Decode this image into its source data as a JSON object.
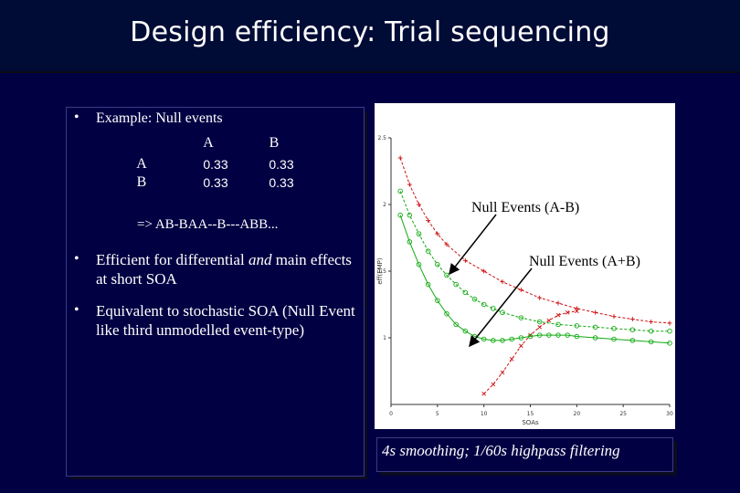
{
  "slide": {
    "title": "Design efficiency: Trial sequencing"
  },
  "left_panel": {
    "bullet_1": "Example: Null events",
    "matrix": {
      "col_headers": [
        "A",
        "B"
      ],
      "rows": [
        {
          "label": "A",
          "values": [
            "0.33",
            "0.33"
          ]
        },
        {
          "label": "B",
          "values": [
            "0.33",
            "0.33"
          ]
        }
      ]
    },
    "sequence": "=> AB-BAA--B---ABB...",
    "bullet_2_pre": "Efficient for differential ",
    "bullet_2_em": "and",
    "bullet_2_post": " main effects at short SOA",
    "bullet_3": "Equivalent to stochastic SOA (Null Event like third unmodelled event-type)",
    "bullet_glyph": "•"
  },
  "figure": {
    "annotations": {
      "null_diff": "Null Events (A-B)",
      "null_main": "Null Events (A+B)"
    },
    "caption": "4s smoothing; 1/60s highpass filtering",
    "colors": {
      "red": "#cc1111",
      "green": "#11aa11",
      "axis": "#333333"
    }
  },
  "chart_data": {
    "type": "line",
    "xlabel": "SOAs",
    "ylabel": "eff(EMP)",
    "xlim": [
      0,
      30
    ],
    "ylim": [
      0.5,
      2.5
    ],
    "x_ticks": [
      "0",
      "5",
      "10",
      "15",
      "20",
      "25",
      "30"
    ],
    "y_ticks": [
      "1",
      "1.5",
      "2",
      "2.5"
    ],
    "series": [
      {
        "color": "red",
        "style": "dashed",
        "marker": "+",
        "x": [
          1,
          2,
          3,
          4,
          5,
          6,
          8,
          10,
          12,
          14,
          16,
          18,
          20,
          22,
          24,
          26,
          28,
          30
        ],
        "y": [
          2.35,
          2.15,
          2.0,
          1.88,
          1.78,
          1.7,
          1.58,
          1.5,
          1.42,
          1.36,
          1.3,
          1.26,
          1.22,
          1.19,
          1.16,
          1.14,
          1.12,
          1.11
        ]
      },
      {
        "color": "red",
        "style": "dashed",
        "marker": "x",
        "x": [
          10,
          11,
          12,
          13,
          14,
          15,
          16,
          17,
          18,
          19,
          20
        ],
        "y": [
          0.58,
          0.65,
          0.74,
          0.84,
          0.94,
          1.02,
          1.08,
          1.13,
          1.17,
          1.19,
          1.2
        ]
      },
      {
        "color": "green",
        "style": "dashed",
        "marker": "o",
        "x": [
          1,
          2,
          3,
          4,
          5,
          6,
          7,
          8,
          9,
          10,
          11,
          12,
          14,
          16,
          18,
          20,
          22,
          24,
          26,
          28,
          30
        ],
        "y": [
          2.1,
          1.92,
          1.78,
          1.65,
          1.55,
          1.47,
          1.4,
          1.34,
          1.29,
          1.25,
          1.22,
          1.19,
          1.15,
          1.12,
          1.1,
          1.09,
          1.08,
          1.07,
          1.06,
          1.05,
          1.05
        ]
      },
      {
        "color": "green",
        "style": "solid",
        "marker": "o",
        "x": [
          1,
          2,
          3,
          4,
          5,
          6,
          7,
          8,
          9,
          10,
          11,
          12,
          13,
          14,
          15,
          16,
          17,
          18,
          19,
          20,
          22,
          24,
          26,
          28,
          30
        ],
        "y": [
          1.92,
          1.72,
          1.55,
          1.4,
          1.28,
          1.18,
          1.1,
          1.05,
          1.01,
          0.99,
          0.98,
          0.98,
          0.99,
          1.0,
          1.01,
          1.02,
          1.02,
          1.02,
          1.02,
          1.01,
          1.0,
          0.99,
          0.98,
          0.97,
          0.96
        ]
      }
    ]
  }
}
